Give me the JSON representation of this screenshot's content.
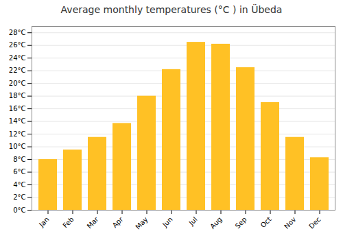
{
  "chart_data": {
    "type": "bar",
    "title": "Average monthly temperatures (°C ) in Übeda",
    "categories": [
      "Jan",
      "Feb",
      "Mar",
      "Apr",
      "May",
      "Jun",
      "Jul",
      "Aug",
      "Sep",
      "Oct",
      "Nov",
      "Dec"
    ],
    "values": [
      8.0,
      9.5,
      11.5,
      13.7,
      18.0,
      22.2,
      26.5,
      26.2,
      22.5,
      17.0,
      11.5,
      8.3
    ],
    "color": "#FFC125",
    "ylim": [
      0,
      29
    ],
    "yticks": [
      {
        "value": 0,
        "label": "0°C"
      },
      {
        "value": 2,
        "label": "2°C"
      },
      {
        "value": 4,
        "label": "4°C"
      },
      {
        "value": 6,
        "label": "6°C"
      },
      {
        "value": 8,
        "label": "8°C"
      },
      {
        "value": 10,
        "label": "10°C"
      },
      {
        "value": 12,
        "label": "12°C"
      },
      {
        "value": 14,
        "label": "14°C"
      },
      {
        "value": 16,
        "label": "16°C"
      },
      {
        "value": 18,
        "label": "18°C"
      },
      {
        "value": 20,
        "label": "20°C"
      },
      {
        "value": 22,
        "label": "22°C"
      },
      {
        "value": 24,
        "label": "24°C"
      },
      {
        "value": 26,
        "label": "26°C"
      },
      {
        "value": 28,
        "label": "28°C"
      }
    ],
    "grid": true
  }
}
